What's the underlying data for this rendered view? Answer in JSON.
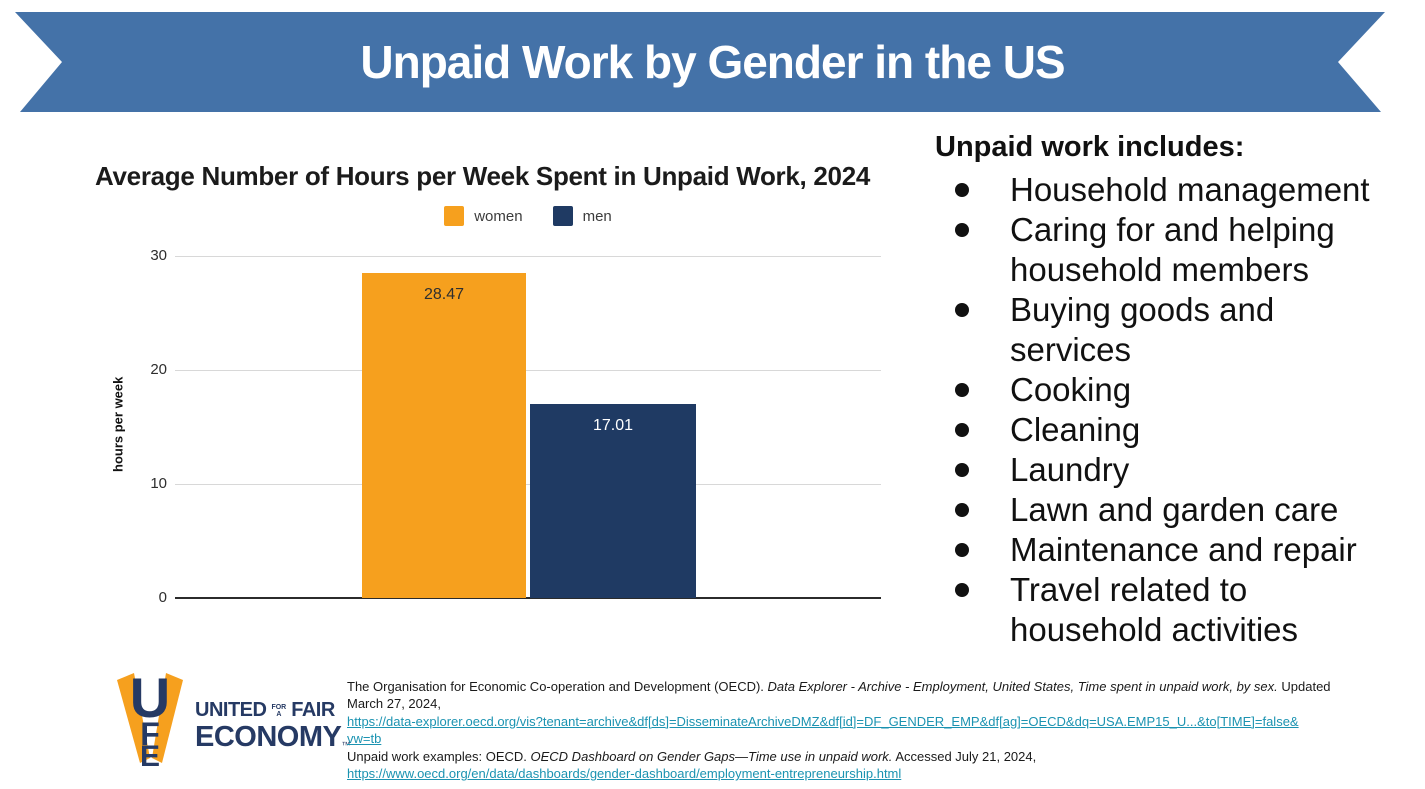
{
  "header": {
    "title": "Unpaid Work by Gender in the US",
    "banner_color": "#4472A8"
  },
  "chart_data": {
    "type": "bar",
    "title": "Average Number of Hours per Week Spent in Unpaid Work, 2024",
    "xlabel": "",
    "ylabel": "hours per week",
    "ylim": [
      0,
      30
    ],
    "yticks": [
      0,
      10,
      20,
      30
    ],
    "grid": true,
    "legend_position": "top",
    "categories": [
      "women",
      "men"
    ],
    "values": [
      28.47,
      17.01
    ],
    "value_labels": [
      "28.47",
      "17.01"
    ],
    "series": [
      {
        "name": "women",
        "value": 28.47,
        "color": "#F6A01E",
        "label_color": "#2F2F2F"
      },
      {
        "name": "men",
        "value": 17.01,
        "color": "#1F3A63",
        "label_color": "#FFFFFF"
      }
    ]
  },
  "right_panel": {
    "heading": "Unpaid work includes:",
    "items": [
      "Household management",
      "Caring for and helping\nhousehold members",
      "Buying goods and\nservices",
      "Cooking",
      "Cleaning",
      "Laundry",
      "Lawn and garden care",
      "Maintenance and repair",
      "Travel related to\nhousehold activities"
    ]
  },
  "footer": {
    "logo": {
      "monogram": [
        "U",
        "F",
        "E"
      ],
      "line1_left": "UNITED",
      "line1_small_top": "FOR",
      "line1_small_bottom": "A",
      "line1_right": "FAIR",
      "line2": "ECONOMY",
      "trademark": "™",
      "navy": "#263A64",
      "orange": "#F6A01E"
    },
    "citation": {
      "link_color": "#1B93B1",
      "lines": [
        {
          "segments": [
            {
              "text": "The Organisation for Economic Co-operation and Development (OECD). ",
              "style": "normal"
            },
            {
              "text": "Data Explorer - Archive - Employment, United States, Time spent in unpaid work, by sex.",
              "style": "italic"
            },
            {
              "text": " Updated",
              "style": "normal"
            }
          ]
        },
        {
          "segments": [
            {
              "text": "March 27, 2024,",
              "style": "normal"
            }
          ]
        },
        {
          "segments": [
            {
              "text": "https://data-explorer.oecd.org/vis?tenant=archive&df[ds]=DisseminateArchiveDMZ&df[id]=DF_GENDER_EMP&df[ag]=OECD&dq=USA.EMP15_U...&to[TIME]=false&",
              "style": "link"
            }
          ]
        },
        {
          "segments": [
            {
              "text": "vw=tb",
              "style": "link"
            }
          ]
        },
        {
          "segments": [
            {
              "text": "Unpaid work examples: OECD. ",
              "style": "normal"
            },
            {
              "text": "OECD Dashboard on Gender Gaps—Time use in unpaid work.",
              "style": "italic"
            },
            {
              "text": " Accessed July 21, 2024,",
              "style": "normal"
            }
          ]
        },
        {
          "segments": [
            {
              "text": "https://www.oecd.org/en/data/dashboards/gender-dashboard/employment-entrepreneurship.html",
              "style": "link"
            }
          ]
        }
      ]
    }
  }
}
